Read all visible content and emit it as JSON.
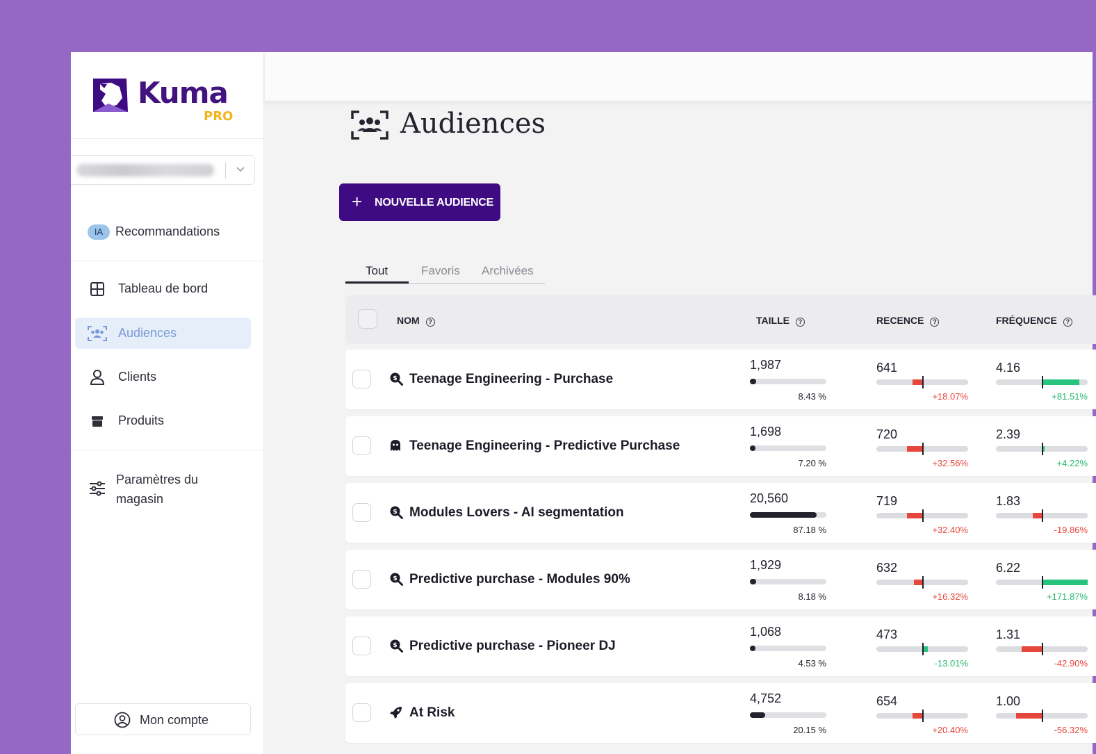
{
  "brand": {
    "name": "Kuma",
    "tier": "PRO",
    "primary_color": "#3f0b83",
    "accent_color": "#f3b41b"
  },
  "sidebar": {
    "recommendations": {
      "badge": "IA",
      "label": "Recommandations"
    },
    "items": [
      {
        "label": "Tableau de bord",
        "icon": "grid-icon"
      },
      {
        "label": "Audiences",
        "icon": "audience-icon",
        "active": true
      },
      {
        "label": "Clients",
        "icon": "user-icon"
      },
      {
        "label": "Produits",
        "icon": "box-icon"
      }
    ],
    "settings": {
      "label_line1": "Paramètres du",
      "label_line2": "magasin",
      "icon": "sliders-icon"
    },
    "account": {
      "label": "Mon compte",
      "icon": "account-icon"
    }
  },
  "main": {
    "title": "Audiences",
    "new_button": {
      "plus": "+",
      "label": "NOUVELLE AUDIENCE"
    },
    "tabs": [
      "Tout",
      "Favoris",
      "Archivées"
    ],
    "active_tab": "Tout",
    "columns": {
      "name": "NOM",
      "size": "TAILLE",
      "recency": "RECENCE",
      "frequency": "FRÉQUENCE"
    },
    "rows": [
      {
        "icon": "search-dollar-icon",
        "name": "Teenage Engineering - Purchase",
        "size": "1,987",
        "size_pct": "8.43 %",
        "size_fraction": 0.0843,
        "recency": "641",
        "recency_delta": "+18.07%",
        "recency_trend": "neg",
        "frequency": "4.16",
        "frequency_delta": "+81.51%",
        "frequency_trend": "pos"
      },
      {
        "icon": "ghost-icon",
        "name": "Teenage Engineering - Predictive Purchase",
        "size": "1,698",
        "size_pct": "7.20 %",
        "size_fraction": 0.072,
        "recency": "720",
        "recency_delta": "+32.56%",
        "recency_trend": "neg",
        "frequency": "2.39",
        "frequency_delta": "+4.22%",
        "frequency_trend": "pos"
      },
      {
        "icon": "search-dollar-icon",
        "name": "Modules Lovers - AI segmentation",
        "size": "20,560",
        "size_pct": "87.18 %",
        "size_fraction": 0.8718,
        "recency": "719",
        "recency_delta": "+32.40%",
        "recency_trend": "neg",
        "frequency": "1.83",
        "frequency_delta": "-19.86%",
        "frequency_trend": "neg"
      },
      {
        "icon": "search-dollar-icon",
        "name": "Predictive purchase - Modules 90%",
        "size": "1,929",
        "size_pct": "8.18 %",
        "size_fraction": 0.0818,
        "recency": "632",
        "recency_delta": "+16.32%",
        "recency_trend": "neg",
        "frequency": "6.22",
        "frequency_delta": "+171.87%",
        "frequency_trend": "pos"
      },
      {
        "icon": "search-dollar-icon",
        "name": "Predictive purchase - Pioneer DJ",
        "size": "1,068",
        "size_pct": "4.53 %",
        "size_fraction": 0.0453,
        "recency": "473",
        "recency_delta": "-13.01%",
        "recency_trend": "pos",
        "frequency": "1.31",
        "frequency_delta": "-42.90%",
        "frequency_trend": "neg"
      },
      {
        "icon": "rocket-icon",
        "name": "At Risk",
        "size": "4,752",
        "size_pct": "20.15 %",
        "size_fraction": 0.2015,
        "recency": "654",
        "recency_delta": "+20.40%",
        "recency_trend": "neg",
        "frequency": "1.00",
        "frequency_delta": "-56.32%",
        "frequency_trend": "neg"
      }
    ]
  }
}
